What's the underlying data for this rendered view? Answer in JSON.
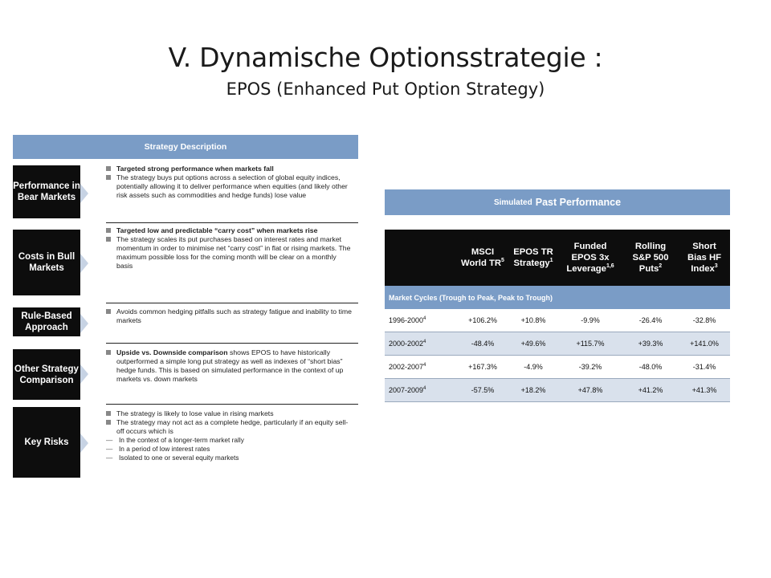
{
  "slide": {
    "title": "V. Dynamische Optionsstrategie :",
    "subtitle": "EPOS (Enhanced Put Option Strategy)"
  },
  "strategy": {
    "header": "Strategy Description",
    "rows": [
      {
        "label": "Performance in Bear Markets",
        "bullets": [
          {
            "bold": "Targeted strong performance when markets fall",
            "text": ""
          },
          {
            "bold": "",
            "text": "The strategy buys put options across a selection of global equity indices,  potentially allowing it to deliver performance when equities (and likely other risk assets such as commodities and hedge funds) lose value"
          }
        ]
      },
      {
        "label": "Costs in Bull Markets",
        "bullets": [
          {
            "bold": "Targeted low and predictable “carry cost” when markets rise",
            "text": ""
          },
          {
            "bold": "",
            "text": "The strategy scales its put purchases based on interest rates and market momentum in order to minimise net “carry cost” in flat or rising markets. The maximum possible loss for the coming month will be clear on a monthly basis"
          }
        ]
      },
      {
        "label": "Rule-Based Approach",
        "bullets": [
          {
            "bold": "",
            "text": "Avoids common hedging pitfalls such as strategy fatigue and inability to time markets"
          }
        ]
      },
      {
        "label": "Other Strategy Comparison",
        "bullets": [
          {
            "bold": "Upside vs. Downside comparison",
            "text": " shows EPOS to have historically outperformed a simple long put strategy as well as indexes of “short bias” hedge funds. This is based on simulated performance in the context of up markets vs. down markets"
          }
        ]
      },
      {
        "label": "Key Risks",
        "bullets": [
          {
            "bold": "",
            "text": "The strategy is likely to lose value in rising markets"
          },
          {
            "bold": "",
            "text": "The strategy may not act as a complete hedge, particularly if an equity sell-off occurs which is"
          }
        ],
        "dashes": [
          "In the context of a longer-term market rally",
          "In a period of low interest rates",
          "Isolated to one or several equity markets"
        ]
      }
    ]
  },
  "performance": {
    "header_small": "Simulated",
    "header_big": "Past Performance",
    "columns": [
      {
        "line1": "MSCI",
        "line2": "World TR",
        "sup": "5"
      },
      {
        "line1": "EPOS TR",
        "line2": "Strategy",
        "sup": "1"
      },
      {
        "line1": "Funded EPOS 3x",
        "line2": "Leverage",
        "sup": "1,6"
      },
      {
        "line1": "Rolling S&P 500",
        "line2": "Puts",
        "sup": "2"
      },
      {
        "line1": "Short Bias HF",
        "line2": "Index",
        "sup": "3"
      }
    ],
    "section_label": "Market Cycles (Trough to Peak, Peak to Trough)",
    "rows": [
      {
        "period": "1996-2000",
        "sup": "4",
        "values": [
          "+106.2%",
          "+10.8%",
          "-9.9%",
          "-26.4%",
          "-32.8%"
        ]
      },
      {
        "period": "2000-2002",
        "sup": "4",
        "values": [
          "-48.4%",
          "+49.6%",
          "+115.7%",
          "+39.3%",
          "+141.0%"
        ]
      },
      {
        "period": "2002-2007",
        "sup": "4",
        "values": [
          "+167.3%",
          "-4.9%",
          "-39.2%",
          "-48.0%",
          "-31.4%"
        ]
      },
      {
        "period": "2007-2009",
        "sup": "4",
        "values": [
          "-57.5%",
          "+18.2%",
          "+47.8%",
          "+41.2%",
          "+41.3%"
        ]
      }
    ]
  }
}
